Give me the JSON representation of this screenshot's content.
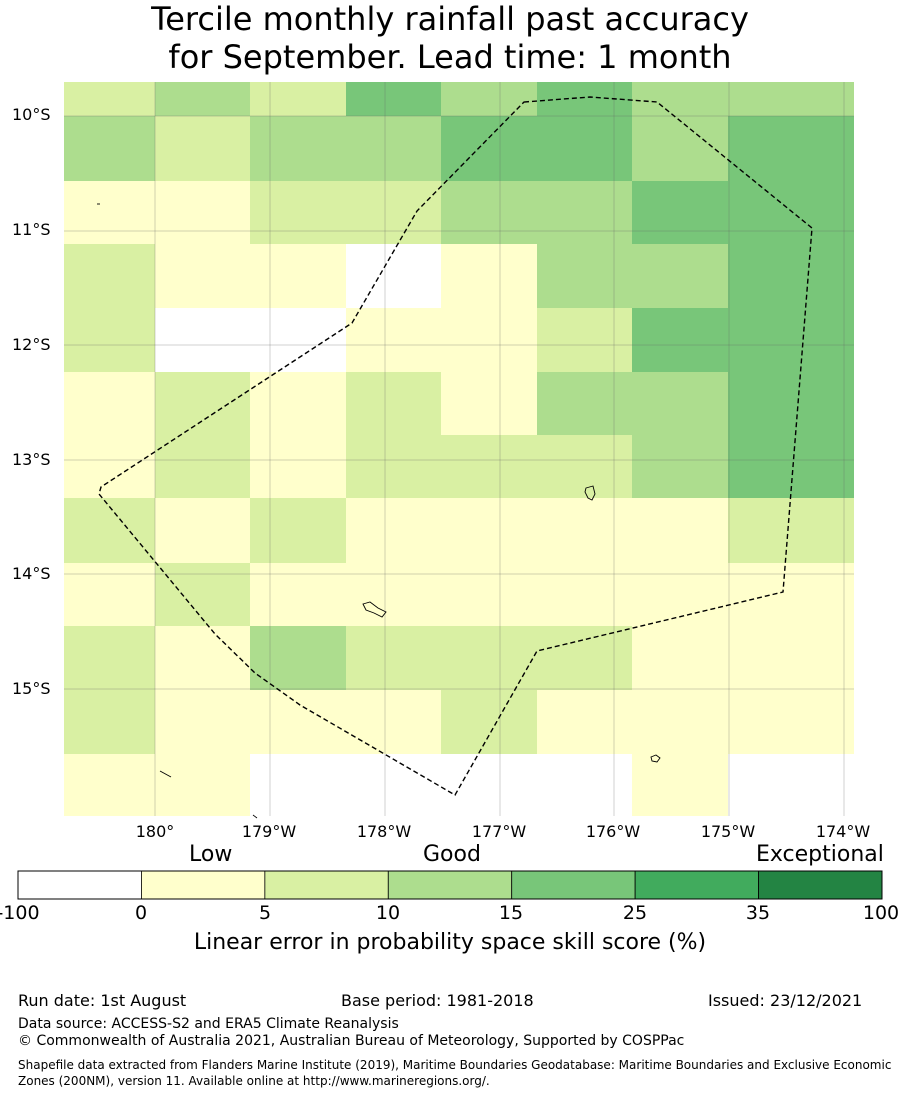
{
  "title_line1": "Tercile monthly rainfall past accuracy",
  "title_line2": "for September. Lead time: 1 month",
  "map": {
    "lat_labels": [
      "10°S",
      "11°S",
      "12°S",
      "13°S",
      "14°S",
      "15°S"
    ],
    "lon_labels": [
      "180°",
      "179°W",
      "178°W",
      "177°W",
      "176°W",
      "175°W",
      "174°W"
    ],
    "category_colors": [
      "#ffffff",
      "#ffffcc",
      "#d9f0a3",
      "#addd8e",
      "#78c679",
      "#41ab5d",
      "#238443"
    ],
    "grid_skill_classes": [
      [
        2,
        3,
        2,
        4,
        3,
        4,
        3,
        3
      ],
      [
        3,
        2,
        3,
        3,
        4,
        4,
        3,
        4
      ],
      [
        1,
        1,
        2,
        2,
        3,
        3,
        4,
        4
      ],
      [
        2,
        1,
        1,
        0,
        1,
        3,
        3,
        4
      ],
      [
        2,
        0,
        0,
        1,
        1,
        2,
        4,
        4
      ],
      [
        1,
        2,
        1,
        2,
        1,
        3,
        3,
        4
      ],
      [
        1,
        2,
        1,
        2,
        2,
        2,
        3,
        4
      ],
      [
        2,
        1,
        2,
        1,
        1,
        1,
        1,
        2
      ],
      [
        1,
        2,
        1,
        1,
        1,
        1,
        1,
        1
      ],
      [
        2,
        1,
        3,
        2,
        2,
        2,
        1,
        1
      ],
      [
        2,
        1,
        1,
        1,
        2,
        1,
        1,
        1
      ],
      [
        1,
        1,
        0,
        0,
        0,
        0,
        1,
        0
      ]
    ]
  },
  "colorbar": {
    "category_labels": [
      "Low",
      "Good",
      "Exceptional"
    ],
    "ticks": [
      "-100",
      "0",
      "5",
      "10",
      "15",
      "25",
      "35",
      "100"
    ],
    "colors": [
      "#ffffff",
      "#ffffcc",
      "#d9f0a3",
      "#addd8e",
      "#78c679",
      "#41ab5d",
      "#238443"
    ],
    "title": "Linear error in probability space skill score (%)"
  },
  "footer": {
    "run_date": "Run date: 1st August",
    "base_period": "Base period: 1981-2018",
    "issued": "Issued: 23/12/2021",
    "data_source": "Data source: ACCESS-S2 and ERA5 Climate Reanalysis",
    "copyright": "© Commonwealth of Australia 2021, Australian Bureau of Meteorology, Supported by COSPPac",
    "shapefile_line1": "Shapefile data extracted from Flanders Marine Institute (2019), Maritime Boundaries Geodatabase: Maritime Boundaries and Exclusive Economic",
    "shapefile_line2": "Zones (200NM), version 11. Available online at http://www.marineregions.org/."
  }
}
